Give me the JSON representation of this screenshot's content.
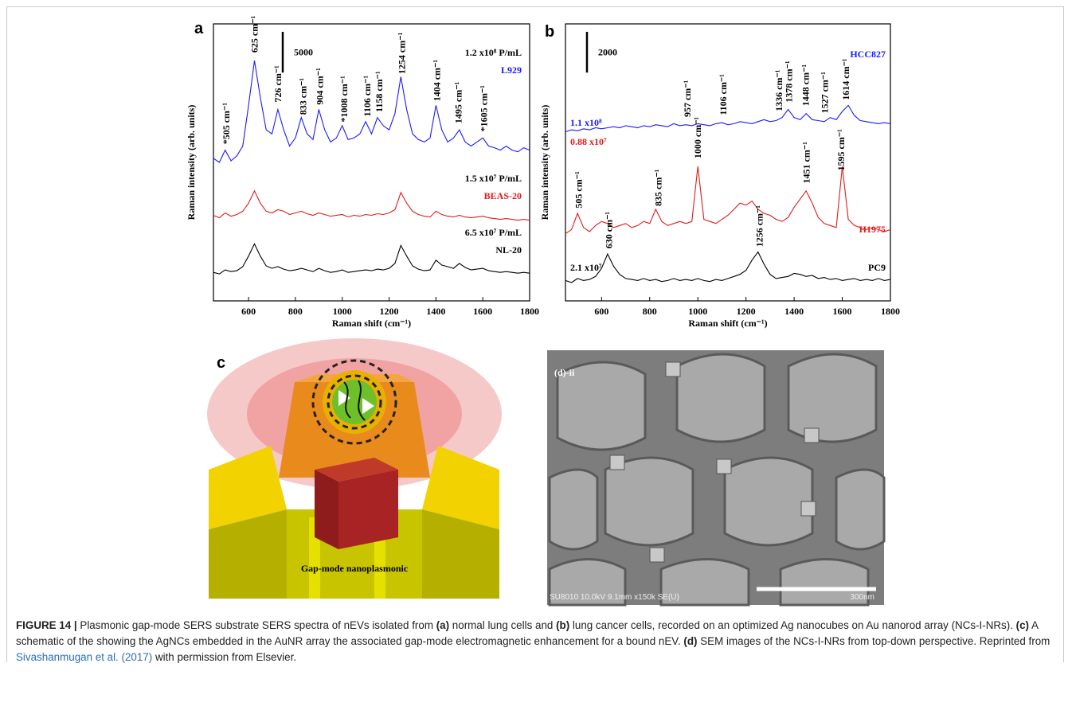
{
  "chart_data": [
    {
      "type": "line",
      "panel": "a",
      "xlabel": "Raman shift (cm⁻¹)",
      "ylabel": "Raman intensity (arb. units)",
      "xlim": [
        450,
        1800
      ],
      "xticks": [
        600,
        800,
        1000,
        1200,
        1400,
        1600,
        1800
      ],
      "ylim": [
        0,
        34000
      ],
      "scale_bar": 5000,
      "x": [
        450,
        475,
        500,
        525,
        550,
        575,
        600,
        625,
        650,
        675,
        700,
        725,
        750,
        775,
        800,
        825,
        850,
        875,
        900,
        925,
        950,
        975,
        1000,
        1025,
        1050,
        1075,
        1100,
        1125,
        1150,
        1175,
        1200,
        1225,
        1250,
        1275,
        1300,
        1325,
        1350,
        1375,
        1400,
        1425,
        1450,
        1475,
        1500,
        1525,
        1550,
        1575,
        1600,
        1625,
        1650,
        1675,
        1700,
        1725,
        1750,
        1775,
        1800
      ],
      "series": [
        {
          "name": "L929",
          "concentration": "1.2 x10⁸ P/mL",
          "color": "#1a1aff",
          "values": [
            17500,
            17000,
            18500,
            17200,
            17800,
            19000,
            24000,
            29500,
            25000,
            21000,
            20500,
            23500,
            21000,
            19000,
            20000,
            22500,
            20500,
            19800,
            23500,
            21000,
            19500,
            20000,
            21500,
            19800,
            20000,
            20500,
            22000,
            20500,
            22500,
            21500,
            21000,
            23000,
            27500,
            23500,
            20500,
            19800,
            19500,
            20000,
            24000,
            21000,
            19500,
            20000,
            21000,
            19500,
            19000,
            19500,
            20000,
            19000,
            18800,
            18500,
            19000,
            18500,
            18300,
            18800,
            18500
          ],
          "annotations": [
            {
              "x": 505,
              "label": "*505 cm⁻¹"
            },
            {
              "x": 625,
              "label": "625 cm⁻¹"
            },
            {
              "x": 726,
              "label": "726 cm⁻¹"
            },
            {
              "x": 833,
              "label": "833 cm⁻¹"
            },
            {
              "x": 904,
              "label": "904 cm⁻¹"
            },
            {
              "x": 1008,
              "label": "*1008 cm⁻¹"
            },
            {
              "x": 1106,
              "label": "1106 cm⁻¹"
            },
            {
              "x": 1158,
              "label": "1158 cm⁻¹"
            },
            {
              "x": 1254,
              "label": "1254 cm⁻¹"
            },
            {
              "x": 1404,
              "label": "1404 cm⁻¹"
            },
            {
              "x": 1495,
              "label": "1495 cm⁻¹"
            },
            {
              "x": 1605,
              "label": "*1605 cm⁻¹"
            }
          ]
        },
        {
          "name": "BEAS-20",
          "concentration": "1.5 x10⁷ P/mL",
          "color": "#e31a1a",
          "values": [
            10500,
            10200,
            10800,
            10400,
            10600,
            11000,
            12000,
            13500,
            12000,
            11000,
            10800,
            11200,
            11000,
            10600,
            10800,
            11000,
            10700,
            10500,
            10800,
            10600,
            10400,
            10500,
            10600,
            10300,
            10500,
            10400,
            10600,
            10500,
            10700,
            10600,
            10800,
            11200,
            13300,
            12000,
            11000,
            10600,
            10400,
            10300,
            11000,
            10600,
            10400,
            10300,
            10500,
            10300,
            10200,
            10300,
            10400,
            10200,
            10100,
            10000,
            10100,
            10000,
            9900,
            10000,
            9900
          ],
          "annotations": []
        },
        {
          "name": "NL-20",
          "concentration": "6.5 x10⁷ P/mL",
          "color": "#000000",
          "values": [
            3500,
            3300,
            3800,
            3600,
            3700,
            4200,
            5500,
            7000,
            5500,
            4300,
            4000,
            4200,
            3900,
            3700,
            3800,
            4000,
            3800,
            3600,
            4000,
            3700,
            3500,
            3600,
            3800,
            3500,
            3600,
            3700,
            3800,
            3700,
            3900,
            3800,
            4000,
            4600,
            6800,
            5500,
            4300,
            3900,
            3700,
            3800,
            5000,
            4400,
            4200,
            4000,
            4600,
            4100,
            3800,
            3900,
            4000,
            3700,
            3600,
            3500,
            3600,
            3500,
            3400,
            3500,
            3400
          ],
          "annotations": []
        }
      ]
    },
    {
      "type": "line",
      "panel": "b",
      "xlabel": "Raman shift (cm⁻¹)",
      "ylabel": "Raman intensity (arb. units)",
      "xlim": [
        450,
        1800
      ],
      "xticks": [
        600,
        800,
        1000,
        1200,
        1400,
        1600,
        1800
      ],
      "ylim": [
        0,
        13600
      ],
      "scale_bar": 2000,
      "x": [
        450,
        475,
        500,
        525,
        550,
        575,
        600,
        625,
        650,
        675,
        700,
        725,
        750,
        775,
        800,
        825,
        850,
        875,
        900,
        925,
        950,
        975,
        1000,
        1025,
        1050,
        1075,
        1100,
        1125,
        1150,
        1175,
        1200,
        1225,
        1250,
        1275,
        1300,
        1325,
        1350,
        1375,
        1400,
        1425,
        1450,
        1475,
        1500,
        1525,
        1550,
        1575,
        1600,
        1625,
        1650,
        1675,
        1700,
        1725,
        1750,
        1775,
        1800
      ],
      "series": [
        {
          "name": "HCC827",
          "concentration": "1.1 x10⁸",
          "color": "#1a1aff",
          "values": [
            8300,
            8400,
            8350,
            8450,
            8400,
            8500,
            8450,
            8500,
            8550,
            8500,
            8600,
            8550,
            8500,
            8600,
            8550,
            8650,
            8600,
            8550,
            8700,
            8600,
            8650,
            8600,
            8700,
            8650,
            8600,
            8700,
            8750,
            8650,
            8700,
            8800,
            8750,
            8700,
            8800,
            8900,
            8800,
            8850,
            9000,
            9400,
            9000,
            8900,
            9200,
            8900,
            8850,
            8800,
            9000,
            8900,
            9300,
            9600,
            9100,
            8850,
            8800,
            8750,
            8700,
            8750,
            8700
          ],
          "annotations": [
            {
              "x": 957,
              "label": "957 cm⁻¹"
            },
            {
              "x": 1106,
              "label": "1106 cm⁻¹"
            },
            {
              "x": 1336,
              "label": "1336 cm⁻¹"
            },
            {
              "x": 1378,
              "label": "1378 cm⁻¹"
            },
            {
              "x": 1448,
              "label": "1448 cm⁻¹"
            },
            {
              "x": 1527,
              "label": "1527 cm⁻¹"
            },
            {
              "x": 1614,
              "label": "1614 cm⁻¹"
            }
          ]
        },
        {
          "name": "H1975",
          "concentration": "0.88 x10⁷",
          "color": "#e31a1a",
          "values": [
            3300,
            3500,
            4300,
            3600,
            3400,
            3700,
            3900,
            3800,
            3600,
            3700,
            3800,
            3600,
            3700,
            3900,
            3800,
            4500,
            3900,
            3700,
            3800,
            3900,
            3800,
            3900,
            6600,
            4000,
            3900,
            3800,
            4000,
            4200,
            4500,
            4800,
            4700,
            4900,
            4500,
            4300,
            4200,
            4000,
            3900,
            4100,
            4600,
            5000,
            5400,
            4800,
            4100,
            3800,
            3700,
            3600,
            6600,
            4000,
            3700,
            3600,
            3500,
            3600,
            3500,
            3400,
            3500
          ],
          "annotations": [
            {
              "x": 505,
              "label": "505 cm⁻¹"
            },
            {
              "x": 835,
              "label": "835 cm⁻¹"
            },
            {
              "x": 1000,
              "label": "1000 cm⁻¹"
            },
            {
              "x": 1451,
              "label": "1451 cm⁻¹"
            },
            {
              "x": 1595,
              "label": "1595 cm⁻¹"
            }
          ]
        },
        {
          "name": "PC9",
          "concentration": "2.1 x10⁷",
          "color": "#000000",
          "values": [
            1000,
            900,
            1100,
            1000,
            1050,
            1200,
            1600,
            2300,
            1700,
            1300,
            1100,
            1050,
            1000,
            1100,
            1000,
            1050,
            950,
            1000,
            1100,
            1000,
            1050,
            1000,
            1100,
            1000,
            950,
            1050,
            1000,
            1100,
            1200,
            1300,
            1500,
            2000,
            2400,
            1800,
            1300,
            1100,
            1150,
            1200,
            1350,
            1300,
            1200,
            1250,
            1100,
            1150,
            1050,
            1100,
            1000,
            1050,
            1100,
            1000,
            1050,
            1000,
            1100,
            1000,
            1050
          ],
          "annotations": [
            {
              "x": 630,
              "label": "630 cm⁻¹"
            },
            {
              "x": 1256,
              "label": "1256 cm⁻¹"
            }
          ]
        }
      ]
    }
  ],
  "panel_c": {
    "label": "c",
    "text": "Gap-mode nanoplasmonic"
  },
  "panel_d": {
    "label": "(d)-ii",
    "info": "SU8010 10.0kV 9.1mm x150k SE(U)",
    "scale": "300nm"
  },
  "caption": [
    {
      "text": "FIGURE 14 |",
      "bold": true
    },
    {
      "text": " Plasmonic gap-mode SERS substrate SERS spectra of nEVs isolated from "
    },
    {
      "text": "(a)",
      "bold": true
    },
    {
      "text": " normal lung cells and "
    },
    {
      "text": "(b)",
      "bold": true
    },
    {
      "text": " lung cancer cells, recorded on an optimized Ag nanocubes on Au nanorod array (NCs-I-NRs). "
    },
    {
      "text": "(c)",
      "bold": true
    },
    {
      "text": " A schematic of the showing the AgNCs embedded in the AuNR array the associated gap-mode electromagnetic enhancement for a bound nEV. "
    },
    {
      "text": "(d)",
      "bold": true
    },
    {
      "text": " SEM images of the NCs-I-NRs from top-down perspective. Reprinted from "
    },
    {
      "text": "Sivashanmugan et al. (2017)",
      "link": true
    },
    {
      "text": " with permission from Elsevier."
    }
  ]
}
